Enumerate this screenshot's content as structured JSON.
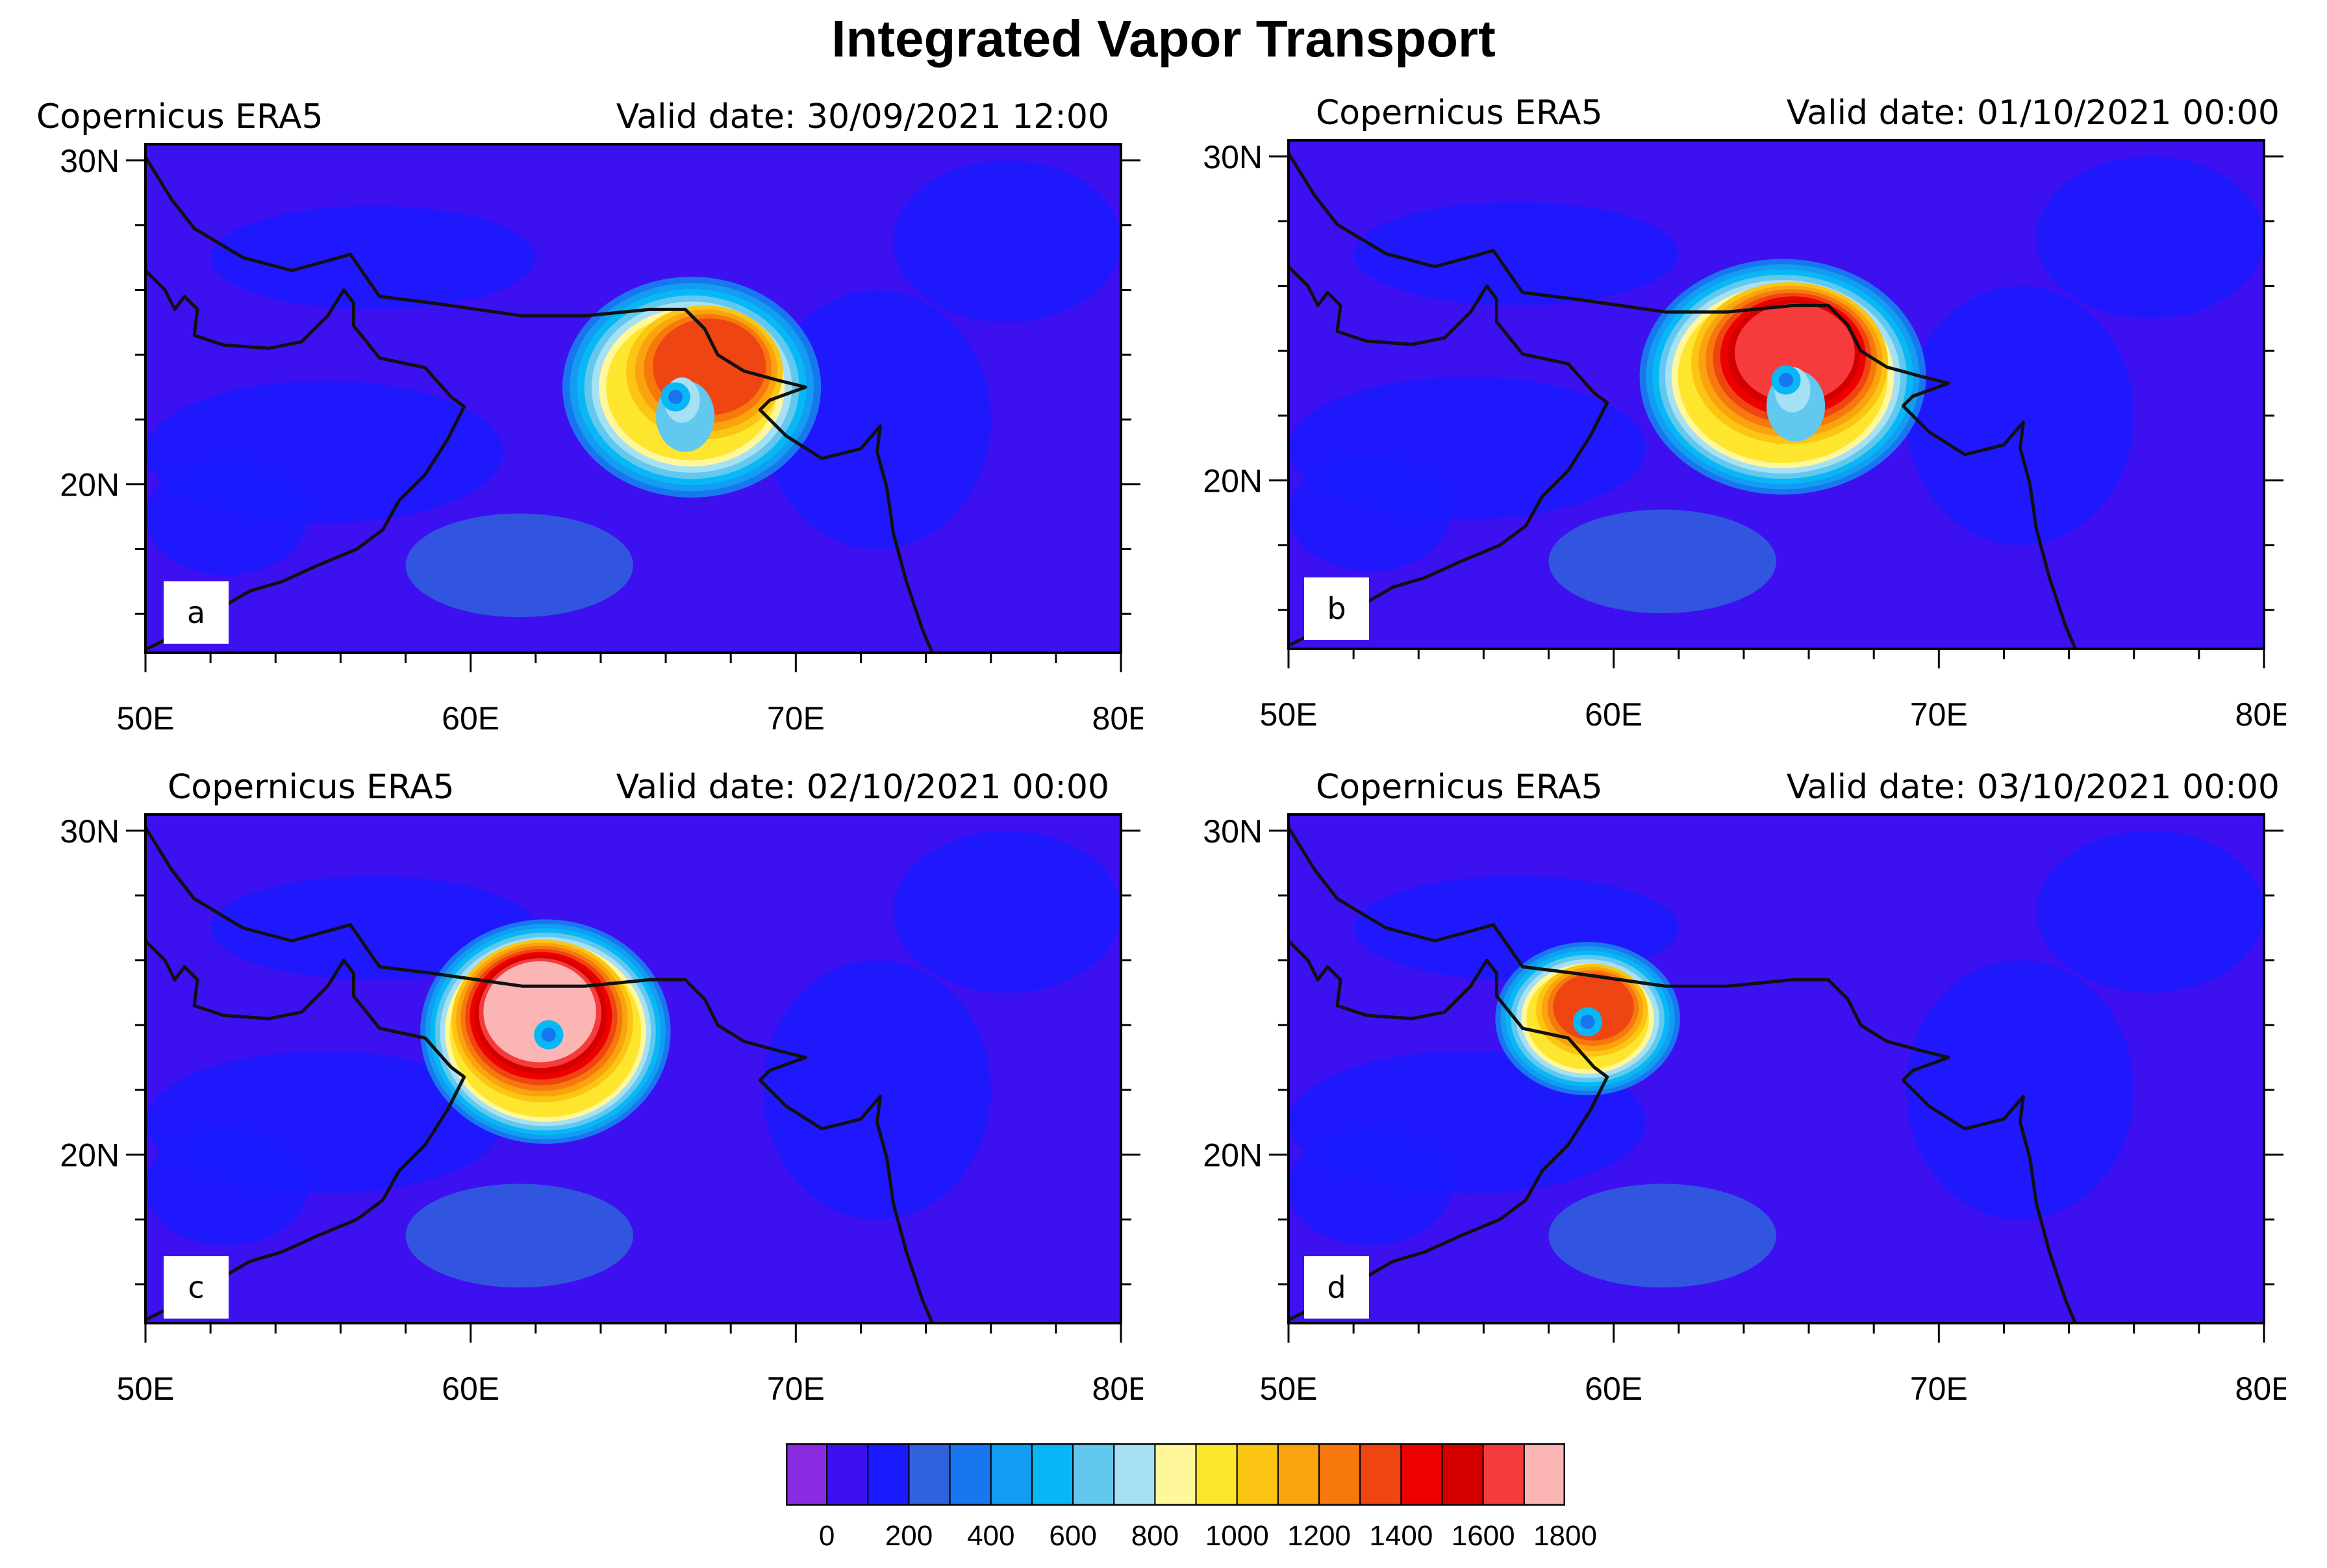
{
  "title": "Integrated Vapor Transport",
  "panels": [
    {
      "letter": "a",
      "source": "Copernicus ERA5",
      "valid_date": "Valid date: 30/09/2021 12:00",
      "center_lon": 66.8,
      "center_lat": 23.0,
      "core_max_ivt": 1300
    },
    {
      "letter": "b",
      "source": "Copernicus ERA5",
      "valid_date": "Valid date: 01/10/2021 00:00",
      "center_lon": 65.2,
      "center_lat": 23.2,
      "core_max_ivt": 1600
    },
    {
      "letter": "c",
      "source": "Copernicus ERA5",
      "valid_date": "Valid date: 02/10/2021 00:00",
      "center_lon": 62.3,
      "center_lat": 23.8,
      "core_max_ivt": 1800
    },
    {
      "letter": "d",
      "source": "Copernicus ERA5",
      "valid_date": "Valid date: 03/10/2021 00:00",
      "center_lon": 59.2,
      "center_lat": 24.2,
      "core_max_ivt": 1300
    }
  ],
  "axes": {
    "lon_ticks": [
      "50E",
      "60E",
      "70E",
      "80E"
    ],
    "lon_values": [
      50,
      60,
      70,
      80
    ],
    "lat_ticks": [
      "30N",
      "20N"
    ],
    "lat_values": [
      30,
      20
    ],
    "lon_range": [
      50,
      80
    ],
    "lat_range": [
      14.8,
      30.5
    ]
  },
  "colorbar": {
    "labels": [
      "0",
      "200",
      "400",
      "600",
      "800",
      "1000",
      "1200",
      "1400",
      "1600",
      "1800"
    ],
    "colors": [
      "#8a2be2",
      "#3d10f0",
      "#1a1aff",
      "#2f62dc",
      "#1877ee",
      "#129cf2",
      "#08b8f6",
      "#62c8ee",
      "#a6e0f4",
      "#fff79a",
      "#ffe62e",
      "#fcc413",
      "#f9a30e",
      "#f7780c",
      "#ef4512",
      "#ee0000",
      "#d40000",
      "#f53b3b",
      "#fbb5b5"
    ]
  },
  "chart_data": {
    "type": "heatmap",
    "title": "Integrated Vapor Transport",
    "x_axis": "longitude",
    "y_axis": "latitude",
    "xlim": [
      50,
      80
    ],
    "ylim": [
      14.8,
      30.5
    ],
    "color_levels": [
      0,
      100,
      200,
      300,
      400,
      500,
      600,
      700,
      800,
      900,
      1000,
      1100,
      1200,
      1300,
      1400,
      1500,
      1600,
      1700,
      1800
    ],
    "panels": [
      {
        "letter": "a",
        "valid_date": "30/09/2021 12:00",
        "max_ivt": 1300,
        "storm_center": [
          66.8,
          23.0
        ]
      },
      {
        "letter": "b",
        "valid_date": "01/10/2021 00:00",
        "max_ivt": 1600,
        "storm_center": [
          65.2,
          23.2
        ]
      },
      {
        "letter": "c",
        "valid_date": "02/10/2021 00:00",
        "max_ivt": 1800,
        "storm_center": [
          62.3,
          23.8
        ]
      },
      {
        "letter": "d",
        "valid_date": "03/10/2021 00:00",
        "max_ivt": 1300,
        "storm_center": [
          59.2,
          24.2
        ]
      }
    ]
  }
}
